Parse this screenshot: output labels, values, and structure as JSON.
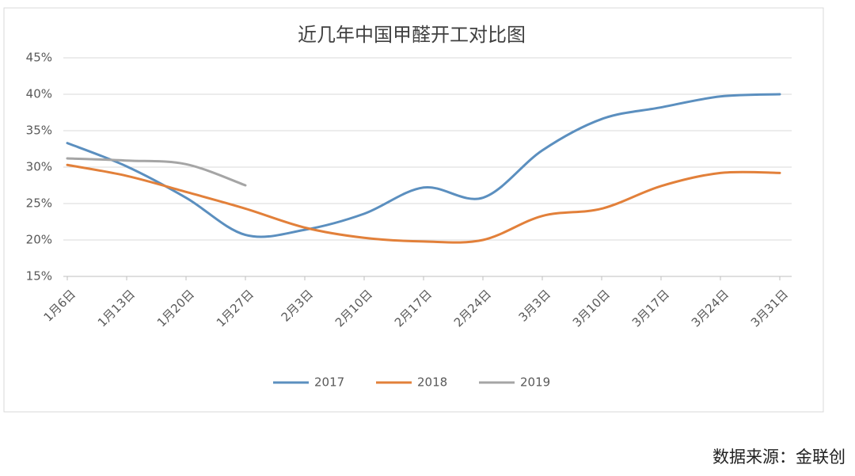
{
  "chart_data": {
    "type": "line",
    "title": "近几年中国甲醛开工对比图",
    "categories": [
      "1月6日",
      "1月13日",
      "1月20日",
      "1月27日",
      "2月3日",
      "2月10日",
      "2月17日",
      "2月24日",
      "3月3日",
      "3月10日",
      "3月17日",
      "3月24日",
      "3月31日"
    ],
    "series": [
      {
        "name": "2017",
        "color": "#5b8fbf",
        "values": [
          33.3,
          30.1,
          25.8,
          20.7,
          21.4,
          23.6,
          27.2,
          25.8,
          32.3,
          36.6,
          38.2,
          39.7,
          40.0
        ]
      },
      {
        "name": "2018",
        "color": "#e2803a",
        "values": [
          30.3,
          28.8,
          26.6,
          24.3,
          21.7,
          20.3,
          19.8,
          20.0,
          23.3,
          24.3,
          27.4,
          29.2,
          29.2
        ]
      },
      {
        "name": "2019",
        "color": "#a5a5a5",
        "values": [
          31.2,
          30.9,
          30.4,
          27.5,
          null,
          null,
          null,
          null,
          null,
          null,
          null,
          null,
          null
        ]
      }
    ],
    "ylim": [
      15,
      45
    ],
    "yticks": [
      {
        "value": 15,
        "label": "15%"
      },
      {
        "value": 20,
        "label": "20%"
      },
      {
        "value": 25,
        "label": "25%"
      },
      {
        "value": 30,
        "label": "30%"
      },
      {
        "value": 35,
        "label": "35%"
      },
      {
        "value": 40,
        "label": "40%"
      },
      {
        "value": 45,
        "label": "45%"
      }
    ],
    "grid": true,
    "legend": "bottom",
    "source": "数据来源：金联创"
  }
}
